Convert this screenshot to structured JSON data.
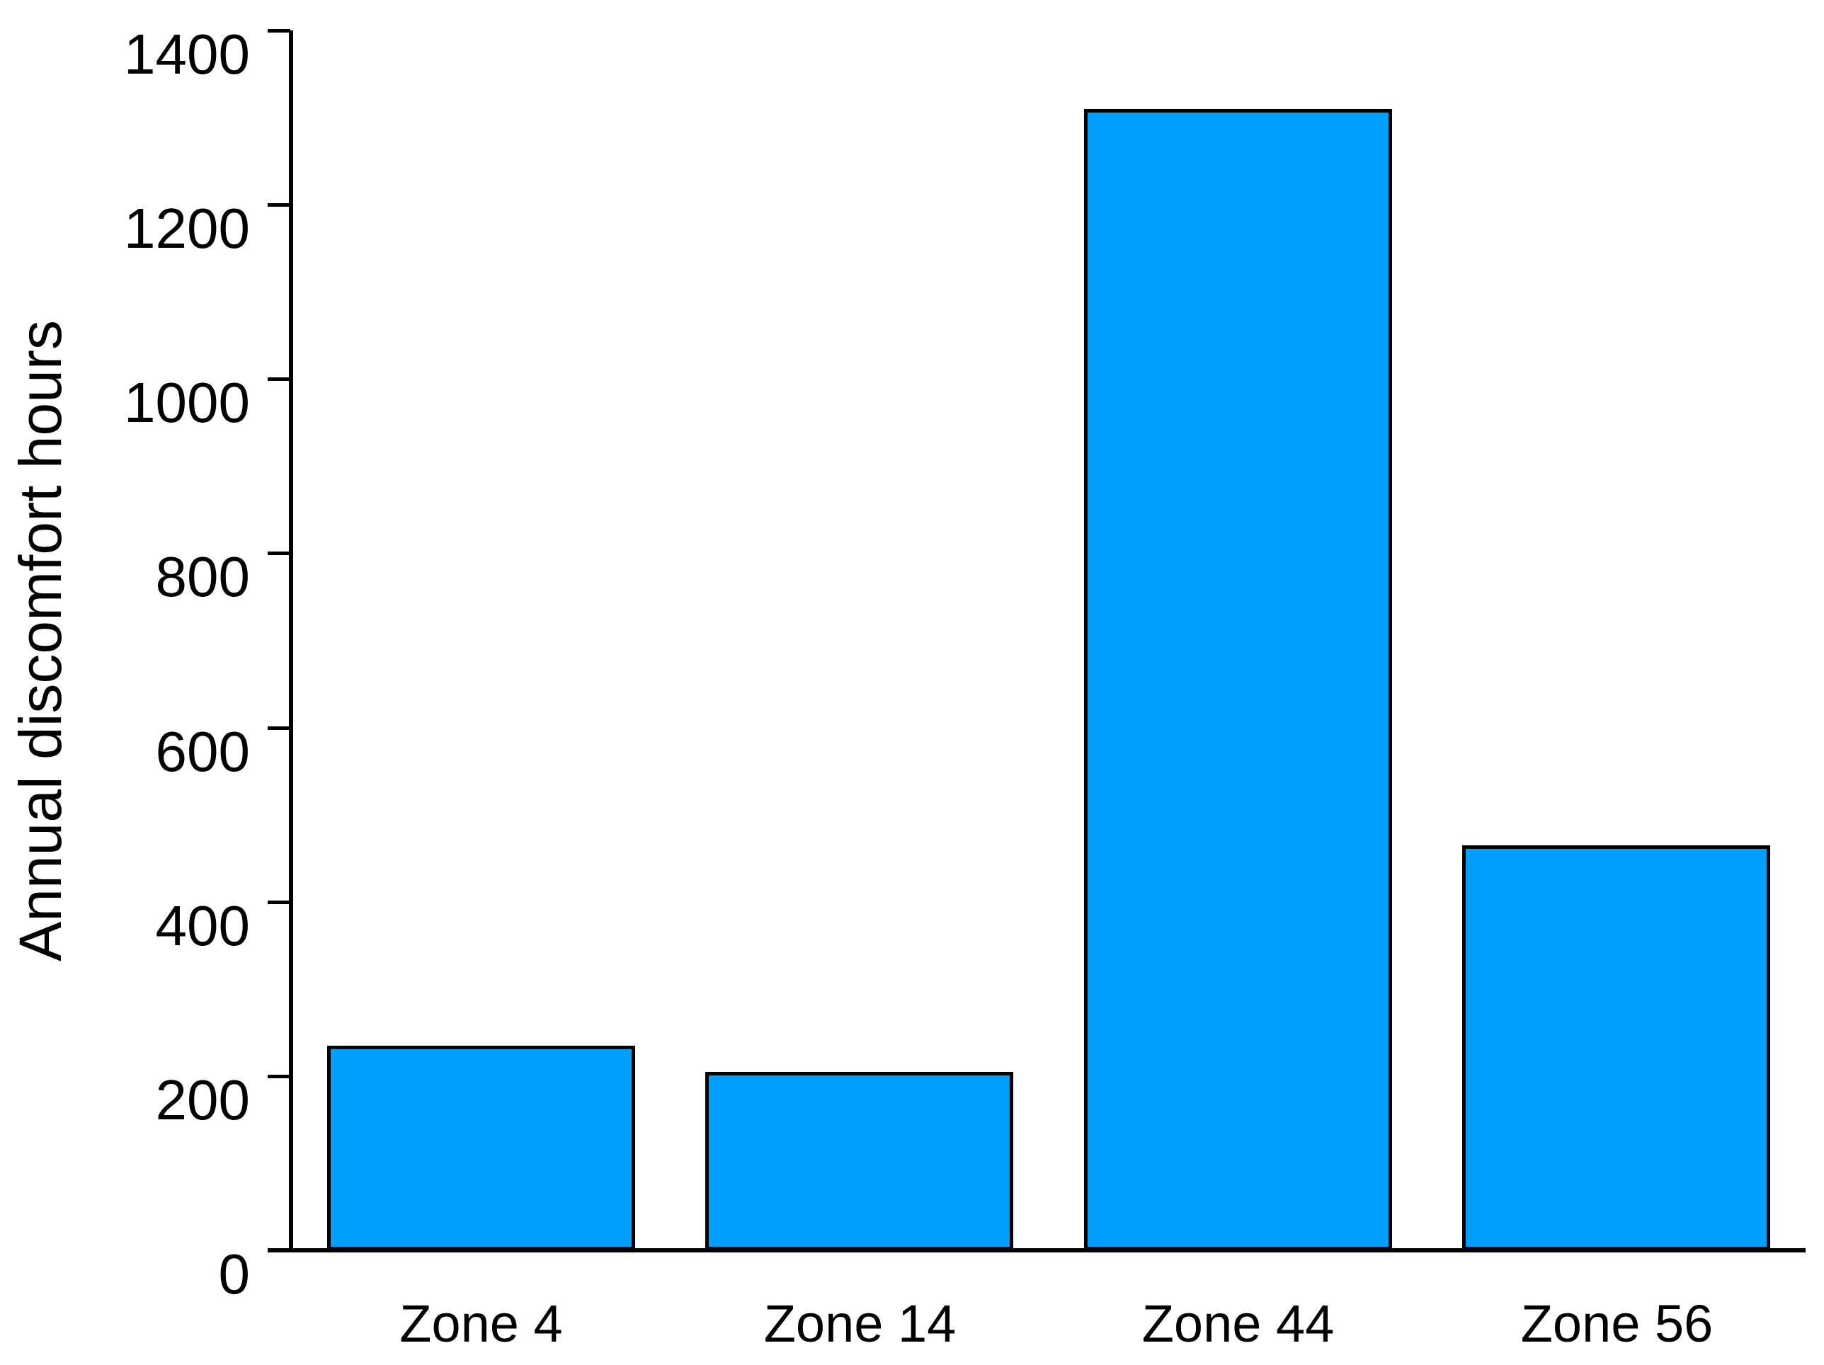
{
  "chart_data": {
    "type": "bar",
    "categories": [
      "Zone 4",
      "Zone 14",
      "Zone 44",
      "Zone 56"
    ],
    "values": [
      235,
      205,
      1310,
      465
    ],
    "title": "",
    "xlabel": "",
    "ylabel": "Annual discomfort hours",
    "ylim": [
      0,
      1400
    ],
    "yticks": [
      0,
      200,
      400,
      600,
      800,
      1000,
      1200,
      1400
    ],
    "grid": false,
    "legend_position": "none",
    "bar_fill_color": "#00A0FF",
    "bar_border_color": "#000000",
    "axis_color": "#000000",
    "text_color": "#000000",
    "background_color": "#FFFFFF"
  }
}
